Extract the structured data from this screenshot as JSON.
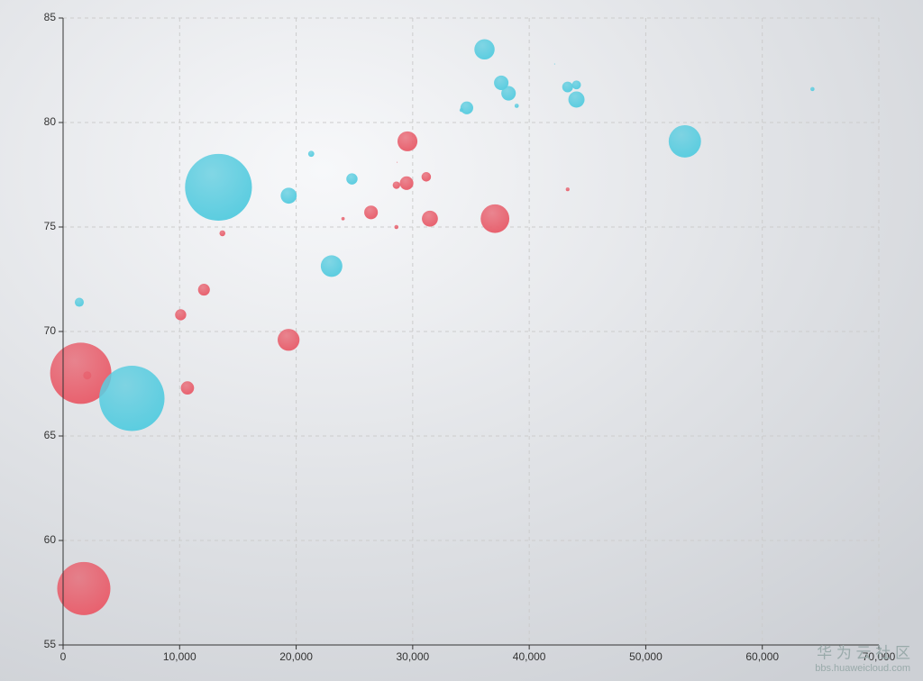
{
  "chart_data": {
    "type": "scatter",
    "xlim": [
      0,
      70000
    ],
    "ylim": [
      55,
      85
    ],
    "xticks": [
      0,
      {
        "value": 10000,
        "label": "10,000"
      },
      {
        "value": 20000,
        "label": "20,000"
      },
      {
        "value": 30000,
        "label": "30,000"
      },
      {
        "value": 40000,
        "label": "40,000"
      },
      {
        "value": 50000,
        "label": "50,000"
      },
      {
        "value": 60000,
        "label": "60,000"
      },
      {
        "value": 70000,
        "label": "70,000"
      }
    ],
    "yticks": [
      55,
      60,
      65,
      70,
      75,
      80,
      85
    ],
    "grid": true,
    "series": [
      {
        "color": "#e8626f",
        "x": [
          28604,
          31163,
          1516,
          13670,
          28599,
          29476,
          31476,
          28666,
          1777,
          29550,
          2076,
          12087,
          24021,
          43296,
          10088,
          19349,
          10670,
          26424,
          37062
        ],
        "values": [
          77,
          77.4,
          68,
          74.7,
          75,
          77.1,
          75.4,
          78.1,
          57.7,
          79.1,
          67.9,
          72,
          75.4,
          76.8,
          70.8,
          69.6,
          67.3,
          75.7,
          75.4
        ],
        "sizes": [
          17096869,
          27662440,
          1154605773,
          10582082,
          4986705,
          56943299,
          78958237,
          254830,
          870601776,
          122249285,
          20194354,
          42972254,
          3397534,
          4240375,
          38195258,
          147568552,
          53994605,
          57110117,
          252847810
        ]
      },
      {
        "color": "#5ccde0",
        "x": [
          44056,
          43294,
          13334,
          21291,
          38923,
          37599,
          44053,
          42182,
          5903,
          36162,
          1390,
          34644,
          34186,
          64304,
          24787,
          23038,
          19360,
          38225,
          53354
        ],
        "values": [
          81.8,
          81.7,
          76.9,
          78.5,
          80.8,
          81.9,
          81.1,
          82.8,
          66.8,
          83.5,
          71.4,
          80.7,
          80.6,
          81.6,
          77.3,
          73.13,
          76.5,
          81.4,
          79.1
        ],
        "sizes": [
          23968973,
          35939927,
          1376048943,
          11389562,
          5503457,
          64395345,
          80688545,
          329425,
          1311050527,
          126573481,
          25155317,
          50293439,
          4528526,
          5210967,
          38611794,
          143456918,
          78665830,
          64715810,
          321773631
        ]
      }
    ]
  },
  "watermark": {
    "title": "华 为 云 社 区",
    "url": "bbs.huaweicloud.com"
  }
}
